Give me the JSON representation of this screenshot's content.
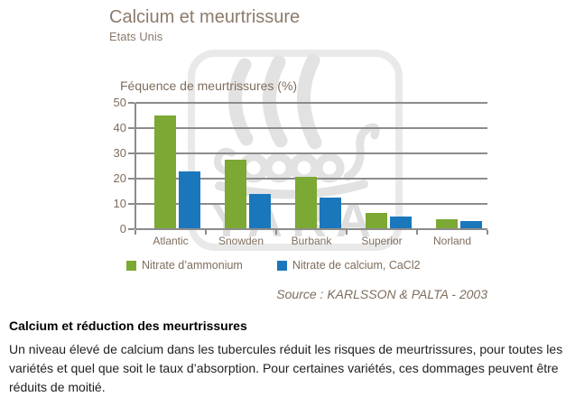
{
  "header": {
    "title": "Calcium et meurtrissure",
    "subtitle": "Etats Unis"
  },
  "watermark": {
    "text": "YARA"
  },
  "chart_data": {
    "type": "bar",
    "title": "Féquence de meurtrissures (%)",
    "categories": [
      "Atlantic",
      "Snowden",
      "Burbank",
      "Superior",
      "Norland"
    ],
    "series": [
      {
        "name": "Nitrate d’ammonium",
        "color": "#7ca834",
        "values": [
          44.5,
          27,
          20.5,
          6,
          3.5
        ]
      },
      {
        "name": "Nitrate de calcium, CaCl2",
        "color": "#1b77bc",
        "values": [
          22.5,
          13.5,
          12,
          4.5,
          3
        ]
      }
    ],
    "ylim": [
      0,
      50
    ],
    "yticks": [
      0,
      10,
      20,
      30,
      40,
      50
    ],
    "grid": true,
    "legend_position": "bottom"
  },
  "source": "Source : KARLSSON & PALTA - 2003",
  "footer": {
    "heading": "Calcium et réduction des meurtrissures",
    "body": "Un niveau élevé de calcium dans les tubercules réduit les risques de meurtrissures, pour toutes les variétés et quel que soit le taux d’absorption. Pour certaines variétés, ces dommages peuvent être réduits de moitié."
  },
  "colors": {
    "series_green": "#7ca834",
    "series_blue": "#1b77bc",
    "heading_brown": "#8c7b6b",
    "chart_text_brown": "#7e6d5c",
    "grid_gray": "#8c8c8c",
    "watermark_gray": "#e2e2e2"
  }
}
